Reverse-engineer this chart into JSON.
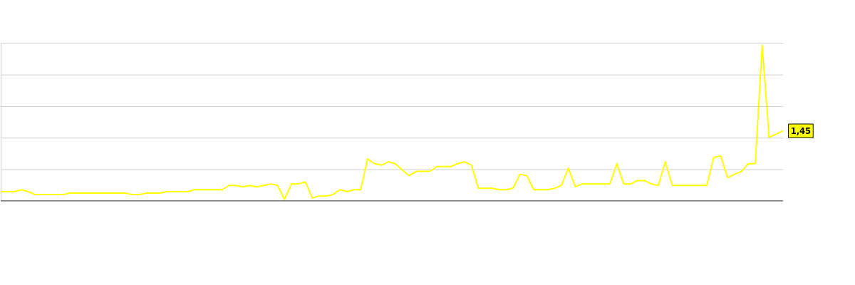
{
  "chart_data": {
    "type": "line",
    "grid": "y",
    "tick_labels": false,
    "ylim": [
      0,
      3.27
    ],
    "yticks": [
      {
        "value": 0.65,
        "label": null
      },
      {
        "value": 1.31,
        "label": null
      },
      {
        "value": 1.96,
        "label": null
      },
      {
        "value": 2.62,
        "label": null
      },
      {
        "value": 3.27,
        "label": null
      }
    ],
    "marker": "none",
    "line_style": "solid",
    "categories": [
      null,
      null,
      null,
      null,
      null,
      null,
      null,
      null,
      null,
      null,
      null,
      null,
      null,
      null,
      null,
      null,
      null,
      null,
      null,
      null,
      null,
      null,
      null,
      null,
      null,
      null,
      null,
      null,
      null,
      null,
      null,
      null,
      null,
      null,
      null,
      null,
      null,
      null,
      null,
      null,
      null,
      null,
      null,
      null,
      null,
      null,
      null,
      null,
      null,
      null,
      null,
      null,
      null,
      null,
      null,
      null,
      null,
      null,
      null,
      null,
      null,
      null,
      null,
      null,
      null,
      null,
      null,
      null,
      null,
      null,
      null,
      null,
      null,
      null,
      null,
      null,
      null,
      null,
      null,
      null,
      null,
      null,
      null,
      null,
      null,
      null,
      null,
      null,
      null,
      null,
      null,
      null,
      null,
      null,
      null,
      null,
      null,
      null,
      null,
      null,
      null,
      null,
      null,
      null,
      null,
      null,
      null,
      null,
      null,
      null,
      null,
      null,
      null,
      null
    ],
    "series": [
      {
        "color": "#ffff00",
        "values": [
          0.19,
          0.19,
          0.19,
          0.23,
          0.19,
          0.13,
          0.13,
          0.13,
          0.13,
          0.13,
          0.16,
          0.16,
          0.16,
          0.16,
          0.16,
          0.16,
          0.16,
          0.16,
          0.16,
          0.13,
          0.13,
          0.16,
          0.16,
          0.16,
          0.19,
          0.19,
          0.19,
          0.19,
          0.23,
          0.23,
          0.23,
          0.23,
          0.23,
          0.32,
          0.32,
          0.29,
          0.32,
          0.29,
          0.32,
          0.35,
          0.32,
          0.03,
          0.35,
          0.35,
          0.39,
          0.06,
          0.1,
          0.1,
          0.13,
          0.23,
          0.19,
          0.23,
          0.23,
          0.87,
          0.77,
          0.74,
          0.81,
          0.77,
          0.64,
          0.52,
          0.61,
          0.61,
          0.61,
          0.71,
          0.71,
          0.71,
          0.77,
          0.81,
          0.74,
          0.26,
          0.26,
          0.26,
          0.23,
          0.23,
          0.26,
          0.55,
          0.52,
          0.23,
          0.23,
          0.23,
          0.26,
          0.32,
          0.68,
          0.29,
          0.35,
          0.35,
          0.35,
          0.35,
          0.35,
          0.77,
          0.35,
          0.35,
          0.42,
          0.42,
          0.35,
          0.32,
          0.81,
          0.32,
          0.32,
          0.32,
          0.32,
          0.32,
          0.32,
          0.9,
          0.93,
          0.48,
          0.55,
          0.61,
          0.77,
          0.77,
          3.22,
          1.32,
          1.38,
          1.45
        ],
        "value_labels": [
          null,
          null,
          null,
          null,
          null,
          null,
          null,
          null,
          null,
          null,
          null,
          null,
          null,
          null,
          null,
          null,
          null,
          null,
          null,
          null,
          null,
          null,
          null,
          null,
          null,
          null,
          null,
          null,
          null,
          null,
          null,
          null,
          null,
          null,
          null,
          null,
          null,
          null,
          null,
          null,
          null,
          null,
          null,
          null,
          null,
          null,
          null,
          null,
          null,
          null,
          null,
          null,
          null,
          null,
          null,
          null,
          null,
          null,
          null,
          null,
          null,
          null,
          null,
          null,
          null,
          null,
          null,
          null,
          null,
          null,
          null,
          null,
          null,
          null,
          null,
          null,
          null,
          null,
          null,
          null,
          null,
          null,
          null,
          null,
          null,
          null,
          null,
          null,
          null,
          null,
          null,
          null,
          null,
          null,
          null,
          null,
          null,
          null,
          null,
          null,
          null,
          null,
          null,
          null,
          null,
          null,
          null,
          null,
          null,
          null,
          null,
          null,
          null,
          "1,45"
        ]
      }
    ]
  }
}
